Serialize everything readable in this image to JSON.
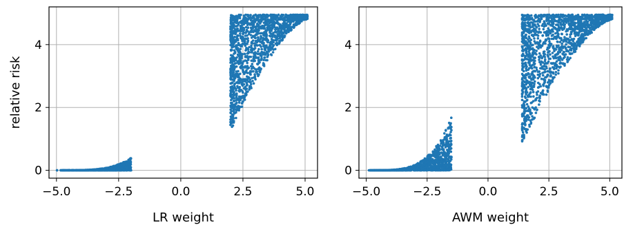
{
  "chart_data": [
    {
      "type": "scatter",
      "xlabel": "LR weight",
      "ylabel": "relative risk",
      "xlim": [
        -5.3,
        5.5
      ],
      "ylim": [
        -0.25,
        5.2
      ],
      "xticks": [
        -5.0,
        -2.5,
        0.0,
        2.5,
        5.0
      ],
      "xtick_labels": [
        "−5.0",
        "−2.5",
        "0.0",
        "2.5",
        "5.0"
      ],
      "yticks": [
        0,
        2,
        4
      ],
      "ytick_labels": [
        "0",
        "2",
        "4"
      ],
      "grid": true,
      "color": "#1f77b4",
      "clusters": [
        {
          "x_range": [
            -5.0,
            -2.0
          ],
          "y_base": 0.0,
          "y_max_at_right": 0.4,
          "count": 900
        },
        {
          "x_range": [
            2.0,
            5.1
          ],
          "y_min": 1.0,
          "y_max": 4.95,
          "count": 1500
        }
      ]
    },
    {
      "type": "scatter",
      "xlabel": "AWM weight",
      "ylabel": "",
      "xlim": [
        -5.3,
        5.5
      ],
      "ylim": [
        -0.25,
        5.2
      ],
      "xticks": [
        -5.0,
        -2.5,
        0.0,
        2.5,
        5.0
      ],
      "xtick_labels": [
        "−5.0",
        "−2.5",
        "0.0",
        "2.5",
        "5.0"
      ],
      "yticks": [
        0,
        2,
        4
      ],
      "ytick_labels": [
        "0",
        "2",
        "4"
      ],
      "grid": true,
      "color": "#1f77b4",
      "clusters": [
        {
          "x_range": [
            -5.0,
            -1.5
          ],
          "y_base": 0.0,
          "y_max_at_right": 1.7,
          "count": 1100
        },
        {
          "x_range": [
            1.4,
            5.1
          ],
          "y_min": 0.6,
          "y_max": 4.95,
          "count": 1600
        }
      ]
    }
  ]
}
